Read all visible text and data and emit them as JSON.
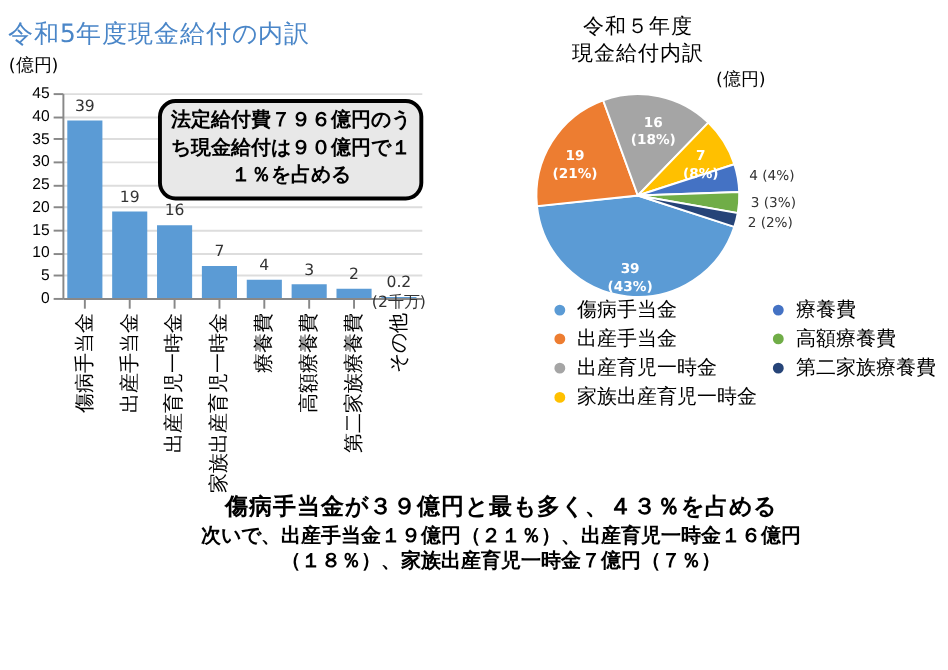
{
  "chart_data": [
    {
      "type": "bar",
      "title": "令和5年度現金給付の内訳",
      "ylabel": "(億円)",
      "categories": [
        "傷病手当金",
        "出産手当金",
        "出産育児一時金",
        "家族出産育児一時金",
        "療養費",
        "高額療養費",
        "第二家族療養費",
        "その他"
      ],
      "values": [
        39,
        19,
        16,
        7,
        4,
        3,
        2,
        0.2
      ],
      "color": "#5b9bd5",
      "value_labels": [
        "39",
        "19",
        "16",
        "7",
        "4",
        "3",
        "2",
        "0.2\n(2千万)"
      ],
      "ylim": [
        0,
        45
      ],
      "yticks": [
        0,
        5,
        10,
        15,
        20,
        25,
        30,
        35,
        40,
        45
      ],
      "grid": "y",
      "annotations": [
        "法定給付費７９６億円のうち現金給付は９０億円で１１％を占める",
        "傷病手当金が３９億円と最も多く、４３％を占める",
        "次いで、出産手当金１９億円（２１％）、出産育児一時金１６億円（１８％）、家族出産育児一時金７億円（７％）"
      ]
    },
    {
      "type": "pie",
      "title": "令和５年度",
      "subtitle": "現金給付内訳",
      "annotations": [
        "(億円)"
      ],
      "categories": [
        "傷病手当金",
        "出産手当金",
        "出産育児一時金",
        "家族出産育児一時金",
        "療養費",
        "高額療養費",
        "第二家族療養費"
      ],
      "values": [
        39,
        19,
        16,
        7,
        4,
        3,
        2
      ],
      "colors": [
        "#5b9bd5",
        "#ed7d31",
        "#a5a5a5",
        "#ffc000",
        "#4472c4",
        "#70ad47",
        "#264478"
      ],
      "value_labels": [
        "39\n(43%)",
        "19\n(21%)",
        "16\n(18%)",
        "7\n(8%)",
        "4\n(4%)",
        "3\n(3%)",
        "2\n(2%)"
      ],
      "legend": "bottom"
    }
  ]
}
